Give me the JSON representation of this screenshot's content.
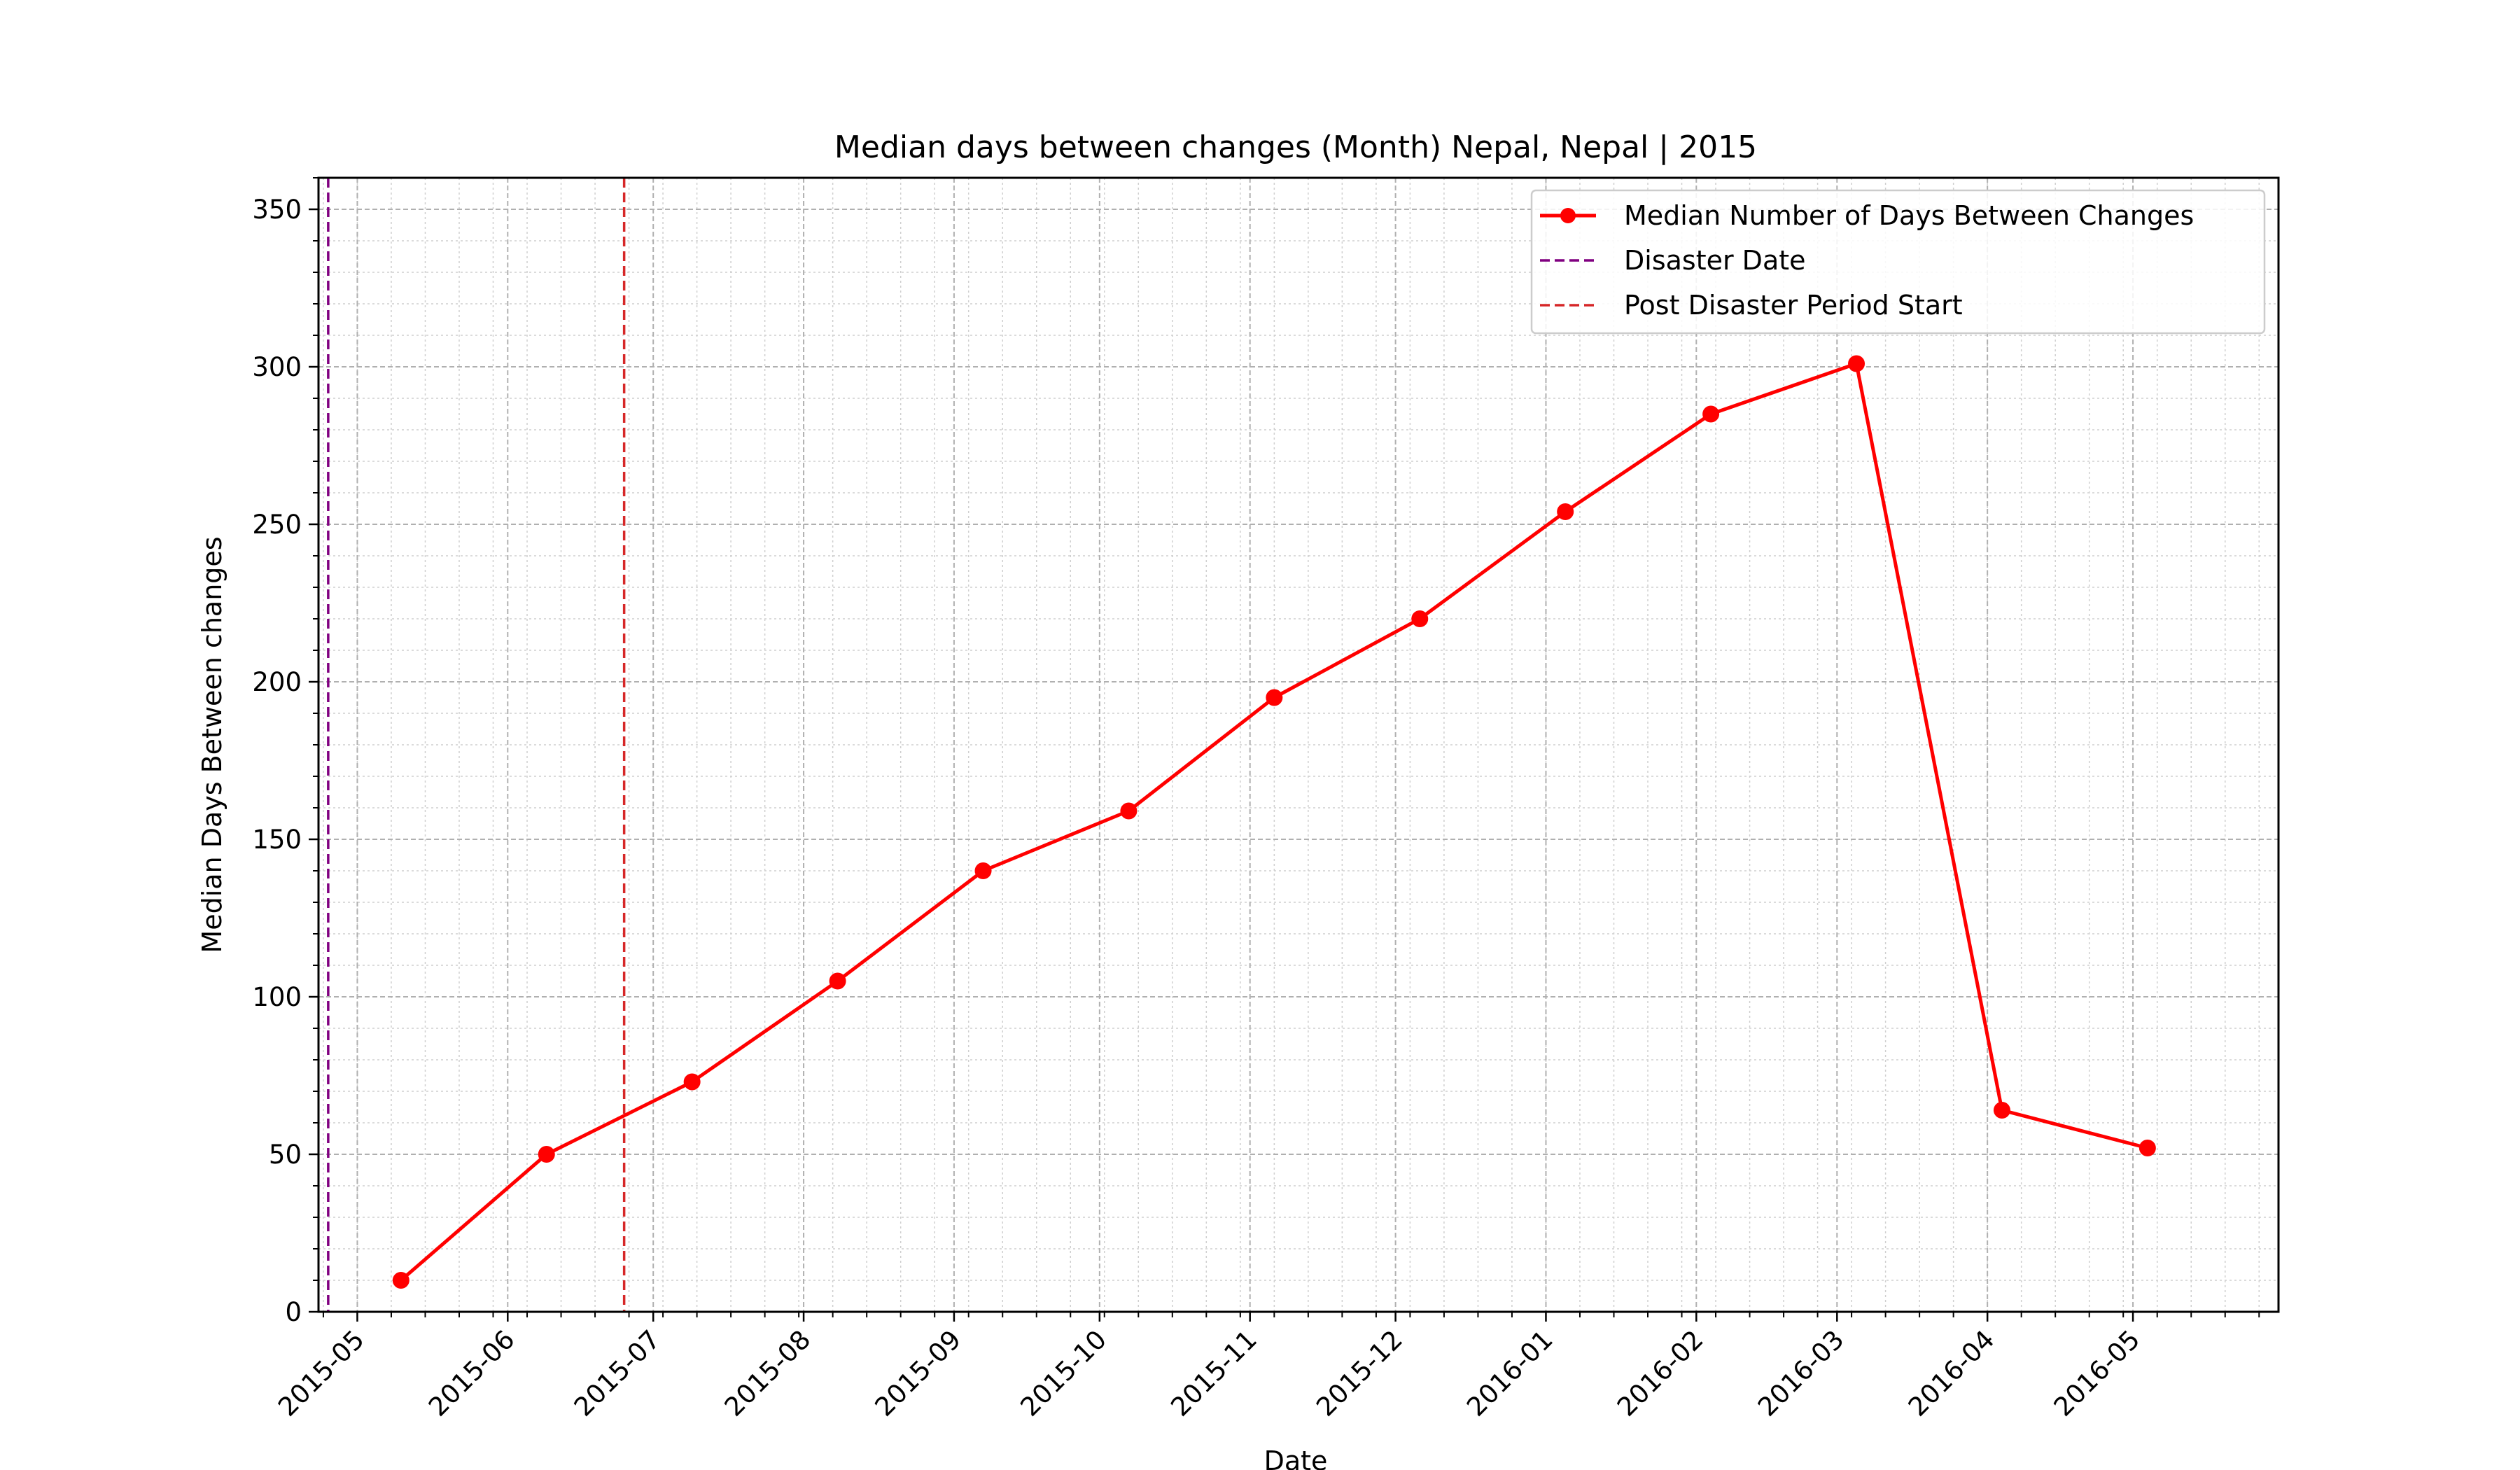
{
  "chart_data": {
    "type": "line",
    "title": "Median days between changes (Month) Nepal, Nepal | 2015",
    "xlabel": "Date",
    "ylabel": "Median Days Between changes",
    "xlim": [
      "2015-04-23",
      "2016-05-31"
    ],
    "ylim": [
      0,
      360
    ],
    "x_ticks": [
      "2015-05",
      "2015-06",
      "2015-07",
      "2015-08",
      "2015-09",
      "2015-10",
      "2015-11",
      "2015-12",
      "2016-01",
      "2016-02",
      "2016-03",
      "2016-04",
      "2016-05"
    ],
    "y_ticks": [
      0,
      50,
      100,
      150,
      200,
      250,
      300,
      350
    ],
    "grid": true,
    "legend_position": "top-right",
    "series": [
      {
        "name": "Median Number of Days Between Changes",
        "color": "#ff0000",
        "marker": "circle",
        "x": [
          "2015-05-10",
          "2015-06-09",
          "2015-07-09",
          "2015-08-08",
          "2015-09-07",
          "2015-10-07",
          "2015-11-06",
          "2015-12-06",
          "2016-01-05",
          "2016-02-04",
          "2016-03-05",
          "2016-04-04",
          "2016-05-04"
        ],
        "y": [
          10,
          50,
          73,
          105,
          140,
          159,
          195,
          220,
          254,
          285,
          301,
          64,
          52
        ]
      }
    ],
    "vlines": [
      {
        "name": "Disaster Date",
        "date": "2015-04-25",
        "color": "#800080",
        "style": "dashed"
      },
      {
        "name": "Post Disaster Period Start",
        "date": "2015-06-25",
        "color": "#d62728",
        "style": "dashed"
      }
    ]
  }
}
